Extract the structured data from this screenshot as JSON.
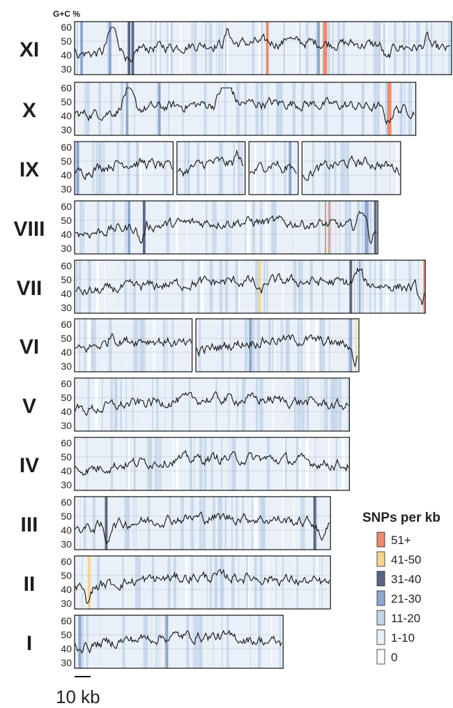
{
  "chart_data": {
    "type": "line",
    "ylabel": "G+C %",
    "ylim": [
      30,
      60
    ],
    "yticks": [
      "60",
      "50",
      "40",
      "30"
    ],
    "scale_bar_label": "10 kb",
    "legend": {
      "title": "SNPs per kb",
      "entries": [
        {
          "label": "51+",
          "color": "#ee8a6a"
        },
        {
          "label": "41-50",
          "color": "#f8d58d"
        },
        {
          "label": "31-40",
          "color": "#5b6585"
        },
        {
          "label": "21-30",
          "color": "#8ea6d2"
        },
        {
          "label": "11-20",
          "color": "#c6d6ea"
        },
        {
          "label": "1-10",
          "color": "#eaf1f8"
        },
        {
          "label": "0",
          "color": "#ffffff"
        }
      ]
    },
    "chromosomes": [
      {
        "name": "XI",
        "segments": [
          [
            0,
            200
          ]
        ],
        "spikes": [
          {
            "pos": 20,
            "dy": 18,
            "w": 5
          },
          {
            "pos": 30,
            "dy": -14,
            "w": 4
          },
          {
            "pos": 81,
            "dy": 10,
            "w": 3
          },
          {
            "pos": 113,
            "dy": 6,
            "w": 3
          },
          {
            "pos": 165,
            "dy": -12,
            "w": 4
          },
          {
            "pos": 186,
            "dy": 8,
            "w": 3
          }
        ],
        "snp_bands": [
          {
            "pos": 3,
            "w": 2,
            "level": 3
          },
          {
            "pos": 18,
            "w": 2,
            "level": 3
          },
          {
            "pos": 28,
            "w": 2,
            "level": 2
          },
          {
            "pos": 30,
            "w": 2,
            "level": 2
          },
          {
            "pos": 101,
            "w": 2,
            "level": 0
          },
          {
            "pos": 128,
            "w": 2,
            "level": 3
          },
          {
            "pos": 131,
            "w": 3,
            "level": 0
          }
        ]
      },
      {
        "name": "X",
        "segments": [
          [
            0,
            180
          ]
        ],
        "spikes": [
          {
            "pos": 28,
            "dy": 16,
            "w": 5
          },
          {
            "pos": 80,
            "dy": 20,
            "w": 6
          },
          {
            "pos": 165,
            "dy": -10,
            "w": 4
          }
        ],
        "snp_bands": [
          {
            "pos": 27,
            "w": 2,
            "level": 3
          },
          {
            "pos": 44,
            "w": 2,
            "level": 3
          },
          {
            "pos": 70,
            "w": 2,
            "level": 5
          },
          {
            "pos": 105,
            "w": 2,
            "level": 5
          },
          {
            "pos": 165,
            "w": 3,
            "level": 0
          }
        ]
      },
      {
        "name": "IX",
        "segments": [
          [
            0,
            52
          ],
          [
            54,
            90
          ],
          [
            92,
            118
          ],
          [
            120,
            172
          ]
        ],
        "spikes": [
          {
            "pos": 86,
            "dy": 10,
            "w": 3
          },
          {
            "pos": 110,
            "dy": -8,
            "w": 3
          }
        ],
        "snp_bands": [
          {
            "pos": 1,
            "w": 2,
            "level": 3
          },
          {
            "pos": 113,
            "w": 2,
            "level": 3
          }
        ]
      },
      {
        "name": "VIII",
        "segments": [
          [
            0,
            160
          ]
        ],
        "spikes": [
          {
            "pos": 35,
            "dy": -12,
            "w": 3
          },
          {
            "pos": 152,
            "dy": 14,
            "w": 5
          },
          {
            "pos": 156,
            "dy": -10,
            "w": 3
          }
        ],
        "snp_bands": [
          {
            "pos": 28,
            "w": 2,
            "level": 3
          },
          {
            "pos": 36,
            "w": 2,
            "level": 2
          },
          {
            "pos": 132,
            "w": 1,
            "level": 0
          },
          {
            "pos": 134,
            "w": 1,
            "level": 0
          },
          {
            "pos": 153,
            "w": 3,
            "level": 3
          },
          {
            "pos": 158,
            "w": 2,
            "level": 2
          }
        ]
      },
      {
        "name": "VII",
        "segments": [
          [
            0,
            185
          ]
        ],
        "spikes": [
          {
            "pos": 98,
            "dy": -10,
            "w": 4
          },
          {
            "pos": 150,
            "dy": 10,
            "w": 4
          },
          {
            "pos": 183,
            "dy": -12,
            "w": 3
          }
        ],
        "snp_bands": [
          {
            "pos": 97,
            "w": 2,
            "level": 1
          },
          {
            "pos": 145,
            "w": 2,
            "level": 2
          },
          {
            "pos": 150,
            "w": 1,
            "level": 3
          },
          {
            "pos": 184,
            "w": 1,
            "level": 0
          }
        ]
      },
      {
        "name": "VI",
        "segments": [
          [
            0,
            62
          ],
          [
            64,
            150
          ]
        ],
        "spikes": [
          {
            "pos": 20,
            "dy": 8,
            "w": 3
          },
          {
            "pos": 148,
            "dy": -12,
            "w": 3
          }
        ],
        "snp_bands": [
          {
            "pos": 92,
            "w": 2,
            "level": 3
          },
          {
            "pos": 145,
            "w": 2,
            "level": 3
          },
          {
            "pos": 148,
            "w": 1,
            "level": 1
          }
        ]
      },
      {
        "name": "V",
        "segments": [
          [
            0,
            145
          ]
        ],
        "spikes": [],
        "snp_bands": []
      },
      {
        "name": "IV",
        "segments": [
          [
            0,
            145
          ]
        ],
        "spikes": [],
        "snp_bands": []
      },
      {
        "name": "III",
        "segments": [
          [
            0,
            135
          ]
        ],
        "spikes": [
          {
            "pos": 17,
            "dy": -12,
            "w": 3
          },
          {
            "pos": 130,
            "dy": -12,
            "w": 3
          }
        ],
        "snp_bands": [
          {
            "pos": 16,
            "w": 2,
            "level": 2
          },
          {
            "pos": 126,
            "w": 2,
            "level": 2
          }
        ]
      },
      {
        "name": "II",
        "segments": [
          [
            0,
            135
          ]
        ],
        "spikes": [
          {
            "pos": 7,
            "dy": -12,
            "w": 3
          }
        ],
        "snp_bands": [
          {
            "pos": 7,
            "w": 2,
            "level": 1
          }
        ]
      },
      {
        "name": "I",
        "segments": [
          [
            0,
            110
          ]
        ],
        "spikes": [],
        "snp_bands": [
          {
            "pos": 2,
            "w": 2,
            "level": 3
          },
          {
            "pos": 48,
            "w": 2,
            "level": 3
          }
        ]
      }
    ]
  }
}
